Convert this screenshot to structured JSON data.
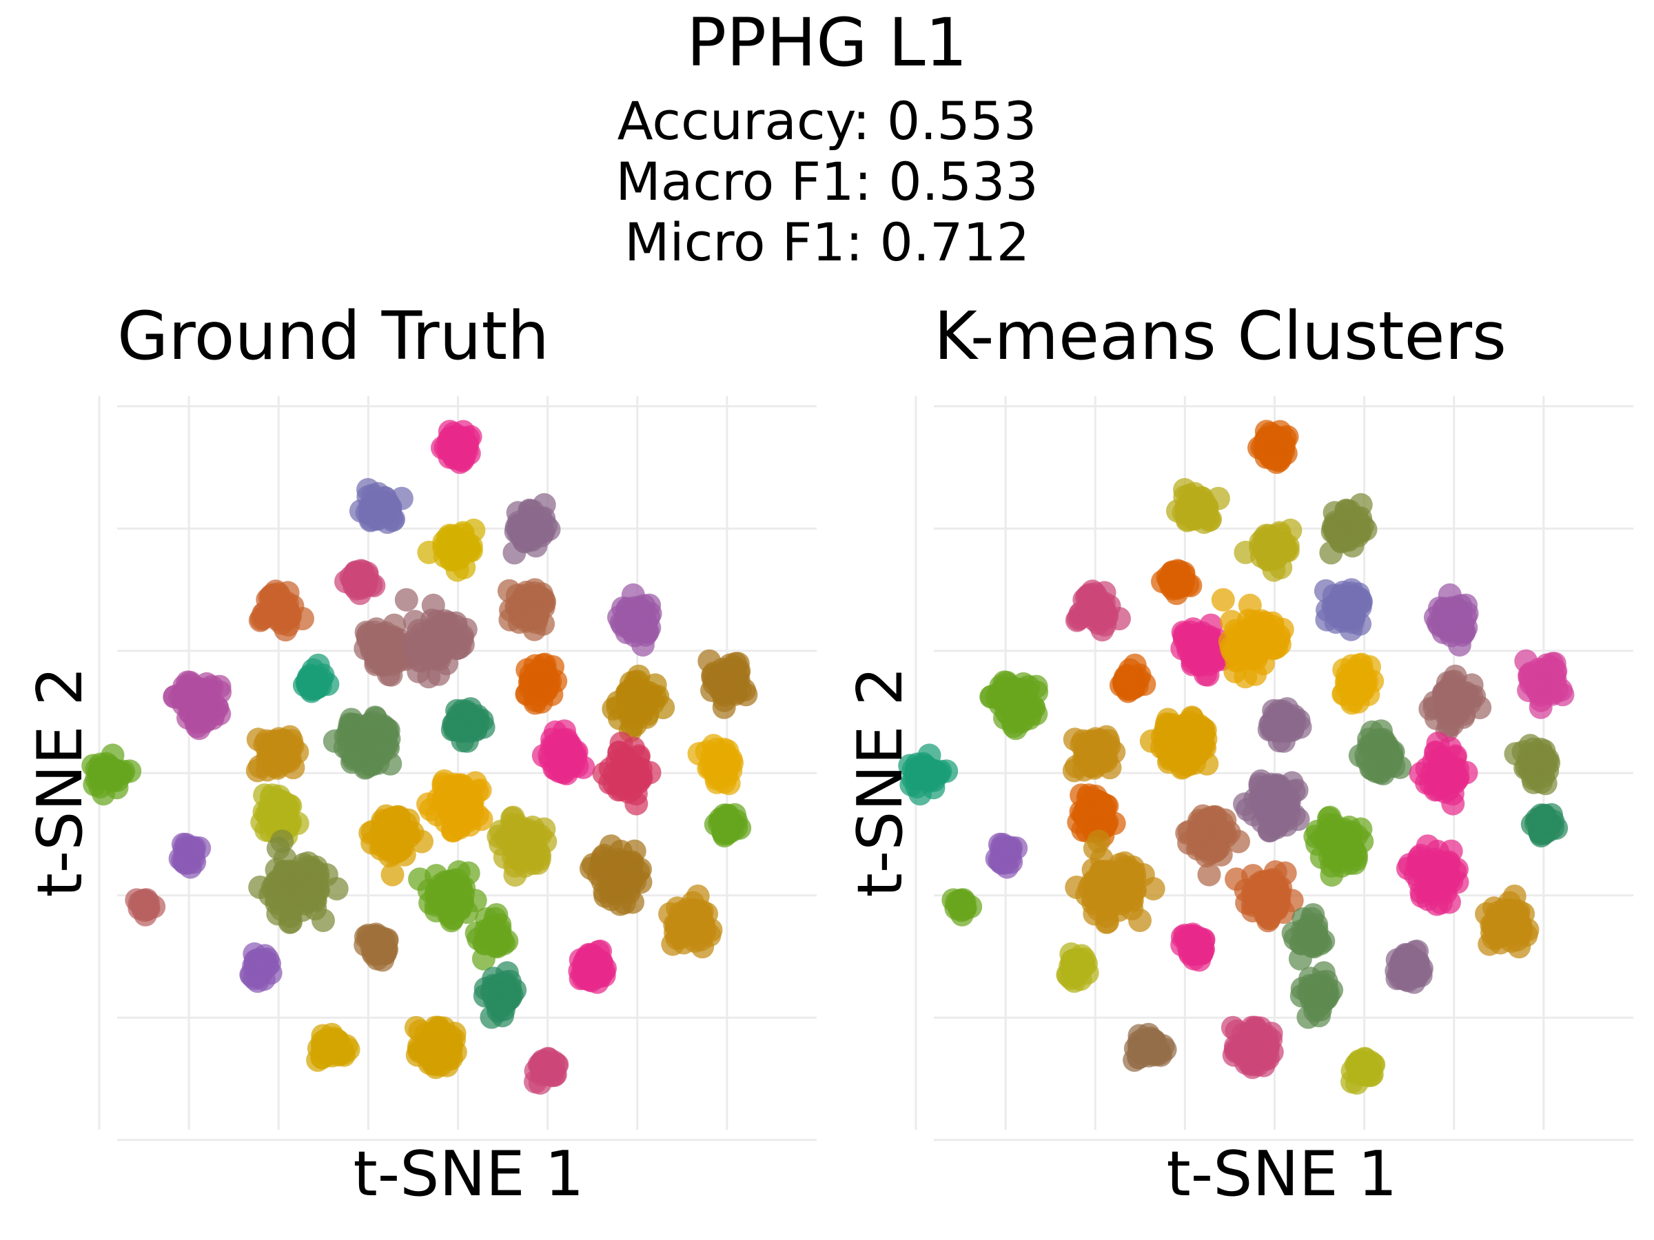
{
  "chart_data": {
    "type": "scatter",
    "title": "PPHG L1",
    "metrics": [
      "Accuracy: 0.553",
      "Macro F1: 0.533",
      "Micro F1: 0.712"
    ],
    "xlim": [
      -38,
      40
    ],
    "ylim": [
      -35,
      37
    ],
    "panels": [
      {
        "title": "Ground Truth",
        "xlabel": "t-SNE 1",
        "ylabel": "t-SNE 2",
        "clusters": [
          {
            "x": 0,
            "y": 32,
            "n": 60,
            "s": 1.4,
            "color": "#e7298a"
          },
          {
            "x": -9,
            "y": 26,
            "n": 50,
            "s": 1.4,
            "color": "#7570b3"
          },
          {
            "x": 0,
            "y": 22,
            "n": 60,
            "s": 1.5,
            "color": "#d4b000"
          },
          {
            "x": 8,
            "y": 24,
            "n": 60,
            "s": 1.6,
            "color": "#8a6a8c"
          },
          {
            "x": -11,
            "y": 19,
            "n": 35,
            "s": 1.1,
            "color": "#cc4778"
          },
          {
            "x": -20,
            "y": 16,
            "n": 60,
            "s": 1.6,
            "color": "#c9622c"
          },
          {
            "x": -8,
            "y": 12,
            "n": 70,
            "s": 1.9,
            "color": "#a06a6a"
          },
          {
            "x": -2,
            "y": 13,
            "n": 90,
            "s": 2.3,
            "color": "#9c6a70"
          },
          {
            "x": 8,
            "y": 16,
            "n": 60,
            "s": 1.7,
            "color": "#b06848"
          },
          {
            "x": 20,
            "y": 15,
            "n": 60,
            "s": 1.6,
            "color": "#9b59a6"
          },
          {
            "x": -29,
            "y": 7,
            "n": 80,
            "s": 2.0,
            "color": "#b04ea0"
          },
          {
            "x": -16,
            "y": 9,
            "n": 40,
            "s": 1.2,
            "color": "#1b9e77"
          },
          {
            "x": 9,
            "y": 9,
            "n": 60,
            "s": 1.6,
            "color": "#d95f02"
          },
          {
            "x": 20,
            "y": 7,
            "n": 70,
            "s": 1.8,
            "color": "#b8860b"
          },
          {
            "x": 30,
            "y": 9,
            "n": 60,
            "s": 1.6,
            "color": "#a6761d"
          },
          {
            "x": -39,
            "y": 0,
            "n": 45,
            "s": 1.3,
            "color": "#66a61e"
          },
          {
            "x": -20,
            "y": 2,
            "n": 60,
            "s": 1.6,
            "color": "#c48a12"
          },
          {
            "x": -10,
            "y": 3,
            "n": 100,
            "s": 2.4,
            "color": "#5e8a50"
          },
          {
            "x": 1,
            "y": 5,
            "n": 50,
            "s": 1.4,
            "color": "#2a8a60"
          },
          {
            "x": 12,
            "y": 2,
            "n": 70,
            "s": 1.8,
            "color": "#e7298a"
          },
          {
            "x": 19,
            "y": 0,
            "n": 70,
            "s": 1.8,
            "color": "#d4365f"
          },
          {
            "x": 29,
            "y": 1,
            "n": 50,
            "s": 1.4,
            "color": "#e6ab02"
          },
          {
            "x": -20,
            "y": -4,
            "n": 60,
            "s": 1.6,
            "color": "#b3b31a"
          },
          {
            "x": 0,
            "y": -3,
            "n": 90,
            "s": 2.2,
            "color": "#e6a500"
          },
          {
            "x": -7,
            "y": -6,
            "n": 80,
            "s": 2.0,
            "color": "#d9a000"
          },
          {
            "x": 7,
            "y": -7,
            "n": 80,
            "s": 2.0,
            "color": "#b8ac1a"
          },
          {
            "x": 30,
            "y": -5,
            "n": 40,
            "s": 1.2,
            "color": "#66a61e"
          },
          {
            "x": -30,
            "y": -8,
            "n": 30,
            "s": 1.0,
            "color": "#8a5cb5"
          },
          {
            "x": -18,
            "y": -11,
            "n": 110,
            "s": 2.5,
            "color": "#7e8a3a"
          },
          {
            "x": -1,
            "y": -12,
            "n": 80,
            "s": 2.0,
            "color": "#6aa61e"
          },
          {
            "x": 18,
            "y": -10,
            "n": 80,
            "s": 2.2,
            "color": "#a6761d"
          },
          {
            "x": -35,
            "y": -13,
            "n": 20,
            "s": 0.7,
            "color": "#b85f5f"
          },
          {
            "x": -9,
            "y": -17,
            "n": 40,
            "s": 1.2,
            "color": "#a0703a"
          },
          {
            "x": 4,
            "y": -16,
            "n": 50,
            "s": 1.3,
            "color": "#6aa61e"
          },
          {
            "x": 26,
            "y": -15,
            "n": 70,
            "s": 1.8,
            "color": "#c48a12"
          },
          {
            "x": -22,
            "y": -19,
            "n": 40,
            "s": 1.2,
            "color": "#8a5cb5"
          },
          {
            "x": 15,
            "y": -19,
            "n": 50,
            "s": 1.4,
            "color": "#e7298a"
          },
          {
            "x": 5,
            "y": -22,
            "n": 50,
            "s": 1.4,
            "color": "#2a8a60"
          },
          {
            "x": -14,
            "y": -27,
            "n": 40,
            "s": 1.3,
            "color": "#d4a500"
          },
          {
            "x": -2,
            "y": -27,
            "n": 80,
            "s": 1.8,
            "color": "#d4a000"
          },
          {
            "x": 10,
            "y": -29,
            "n": 35,
            "s": 1.0,
            "color": "#cc4778"
          }
        ]
      },
      {
        "title": "K-means Clusters",
        "xlabel": "t-SNE 1",
        "ylabel": "t-SNE 2",
        "clusters": [
          {
            "x": 0,
            "y": 32,
            "n": 60,
            "s": 1.4,
            "color": "#d95f02"
          },
          {
            "x": -9,
            "y": 26,
            "n": 50,
            "s": 1.4,
            "color": "#b8ac1a"
          },
          {
            "x": 0,
            "y": 22,
            "n": 60,
            "s": 1.5,
            "color": "#b8ac1a"
          },
          {
            "x": 8,
            "y": 24,
            "n": 60,
            "s": 1.6,
            "color": "#7e8a3a"
          },
          {
            "x": -11,
            "y": 19,
            "n": 35,
            "s": 1.1,
            "color": "#d95f02"
          },
          {
            "x": -20,
            "y": 16,
            "n": 60,
            "s": 1.6,
            "color": "#cc4778"
          },
          {
            "x": -8,
            "y": 12,
            "n": 70,
            "s": 1.9,
            "color": "#e7298a"
          },
          {
            "x": -2,
            "y": 13,
            "n": 90,
            "s": 2.3,
            "color": "#e6a500"
          },
          {
            "x": 8,
            "y": 16,
            "n": 60,
            "s": 1.7,
            "color": "#7570b3"
          },
          {
            "x": 20,
            "y": 15,
            "n": 60,
            "s": 1.6,
            "color": "#9b59a6"
          },
          {
            "x": -29,
            "y": 7,
            "n": 80,
            "s": 2.0,
            "color": "#6aa61e"
          },
          {
            "x": -16,
            "y": 9,
            "n": 40,
            "s": 1.2,
            "color": "#d95f02"
          },
          {
            "x": 9,
            "y": 9,
            "n": 60,
            "s": 1.6,
            "color": "#e6ab02"
          },
          {
            "x": 20,
            "y": 7,
            "n": 70,
            "s": 1.8,
            "color": "#a06a6a"
          },
          {
            "x": 30,
            "y": 9,
            "n": 60,
            "s": 1.6,
            "color": "#d4409a"
          },
          {
            "x": -39,
            "y": 0,
            "n": 45,
            "s": 1.3,
            "color": "#1b9e77"
          },
          {
            "x": -20,
            "y": 2,
            "n": 60,
            "s": 1.6,
            "color": "#c48a12"
          },
          {
            "x": -10,
            "y": 3,
            "n": 100,
            "s": 2.4,
            "color": "#d9a000"
          },
          {
            "x": 1,
            "y": 5,
            "n": 50,
            "s": 1.4,
            "color": "#8a6a8c"
          },
          {
            "x": 12,
            "y": 2,
            "n": 70,
            "s": 1.8,
            "color": "#5e8a50"
          },
          {
            "x": 19,
            "y": 0,
            "n": 70,
            "s": 1.8,
            "color": "#e7298a"
          },
          {
            "x": 29,
            "y": 1,
            "n": 50,
            "s": 1.4,
            "color": "#7e8a3a"
          },
          {
            "x": -20,
            "y": -4,
            "n": 60,
            "s": 1.6,
            "color": "#d95f02"
          },
          {
            "x": 0,
            "y": -3,
            "n": 90,
            "s": 2.2,
            "color": "#8a6a8c"
          },
          {
            "x": -7,
            "y": -6,
            "n": 80,
            "s": 2.0,
            "color": "#b06848"
          },
          {
            "x": 7,
            "y": -7,
            "n": 80,
            "s": 2.0,
            "color": "#6aa61e"
          },
          {
            "x": 30,
            "y": -5,
            "n": 40,
            "s": 1.2,
            "color": "#2a8a60"
          },
          {
            "x": -30,
            "y": -8,
            "n": 30,
            "s": 1.0,
            "color": "#8a5cb5"
          },
          {
            "x": -18,
            "y": -11,
            "n": 110,
            "s": 2.5,
            "color": "#c48a12"
          },
          {
            "x": -1,
            "y": -12,
            "n": 80,
            "s": 2.0,
            "color": "#c9622c"
          },
          {
            "x": 18,
            "y": -10,
            "n": 80,
            "s": 2.2,
            "color": "#e7298a"
          },
          {
            "x": -35,
            "y": -13,
            "n": 20,
            "s": 0.7,
            "color": "#6aa61e"
          },
          {
            "x": -9,
            "y": -17,
            "n": 40,
            "s": 1.2,
            "color": "#e7298a"
          },
          {
            "x": 4,
            "y": -16,
            "n": 50,
            "s": 1.3,
            "color": "#5e8a50"
          },
          {
            "x": 26,
            "y": -15,
            "n": 70,
            "s": 1.8,
            "color": "#c48a12"
          },
          {
            "x": -22,
            "y": -19,
            "n": 40,
            "s": 1.2,
            "color": "#b3b31a"
          },
          {
            "x": 15,
            "y": -19,
            "n": 50,
            "s": 1.4,
            "color": "#8a6a8c"
          },
          {
            "x": 5,
            "y": -22,
            "n": 50,
            "s": 1.4,
            "color": "#5e8a50"
          },
          {
            "x": -14,
            "y": -27,
            "n": 40,
            "s": 1.3,
            "color": "#946e4a"
          },
          {
            "x": -2,
            "y": -27,
            "n": 80,
            "s": 1.8,
            "color": "#cc4778"
          },
          {
            "x": 10,
            "y": -29,
            "n": 35,
            "s": 1.0,
            "color": "#b3b31a"
          }
        ]
      }
    ]
  }
}
